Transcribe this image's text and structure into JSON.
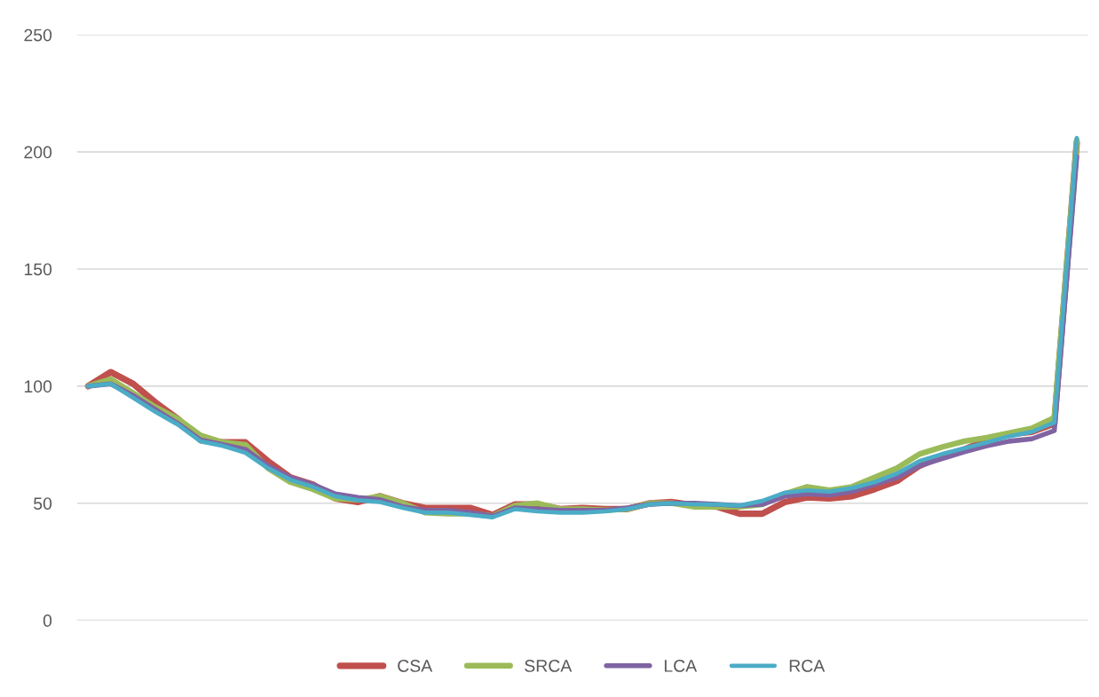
{
  "chart_data": {
    "type": "line",
    "categories": [
      null,
      null,
      null,
      null,
      null,
      null,
      null,
      null,
      null,
      null,
      null,
      null,
      null,
      null,
      null,
      null,
      null,
      null,
      null,
      null,
      null,
      null,
      null,
      null,
      null,
      null,
      null,
      null,
      null,
      null,
      null,
      null,
      null,
      null,
      null,
      null,
      null,
      null,
      null,
      null,
      null,
      null,
      null,
      null,
      null
    ],
    "series": [
      {
        "name": "CSA",
        "color": "#c0504d",
        "values": [
          100,
          106,
          101,
          93,
          86,
          77,
          76,
          76,
          68,
          61,
          58,
          52,
          50.5,
          53,
          50,
          48,
          48,
          48,
          45,
          49.5,
          49.5,
          47.5,
          48,
          47.5,
          47.5,
          50,
          50.5,
          49,
          48.5,
          45.5,
          45.5,
          50.5,
          52.5,
          52,
          53,
          56,
          59.5,
          66,
          70,
          73,
          77,
          79.5,
          80.5,
          84,
          204
        ]
      },
      {
        "name": "SRCA",
        "color": "#9bbb59",
        "values": [
          100,
          103,
          97,
          91,
          86,
          79,
          76,
          75,
          65,
          59,
          56,
          52,
          51.5,
          53,
          50,
          46,
          45.5,
          45.5,
          44.5,
          49,
          50,
          47.5,
          47.5,
          47,
          47.5,
          50,
          50,
          48.5,
          48.5,
          48.5,
          49.5,
          54,
          57,
          55.5,
          57,
          61,
          65,
          71,
          74,
          76.5,
          78,
          80,
          82,
          86.5,
          205
        ]
      },
      {
        "name": "LCA",
        "color": "#8064a2",
        "values": [
          100,
          101,
          96,
          90,
          84,
          77,
          75,
          73,
          66,
          61,
          58,
          54,
          52.5,
          51.5,
          48.5,
          47,
          47,
          46,
          44.5,
          48,
          47.5,
          47,
          47,
          47,
          48,
          49.5,
          50,
          50,
          49.5,
          49,
          49.5,
          53,
          54,
          53.5,
          55,
          58,
          61,
          66,
          69,
          72,
          74.5,
          76.5,
          77.5,
          81,
          198
        ]
      },
      {
        "name": "RCA",
        "color": "#4bacc6",
        "values": [
          100,
          101,
          95,
          89,
          83.5,
          76.4,
          74.5,
          71.5,
          65,
          60,
          57,
          53,
          51.3,
          50.5,
          48,
          46,
          46,
          45,
          44,
          47.5,
          46.5,
          46,
          46,
          46.5,
          47.5,
          49.5,
          50,
          49.5,
          49.5,
          49,
          51,
          54.5,
          55.5,
          55,
          56.5,
          59,
          62.7,
          68,
          71,
          73.5,
          76,
          78.6,
          80.5,
          84.5,
          206
        ]
      }
    ],
    "ylim": [
      0,
      250
    ],
    "yticks": [
      0,
      50,
      100,
      150,
      200,
      250
    ],
    "grid": "y",
    "legend": "bottom",
    "marker": "none",
    "line_style": "solid"
  }
}
